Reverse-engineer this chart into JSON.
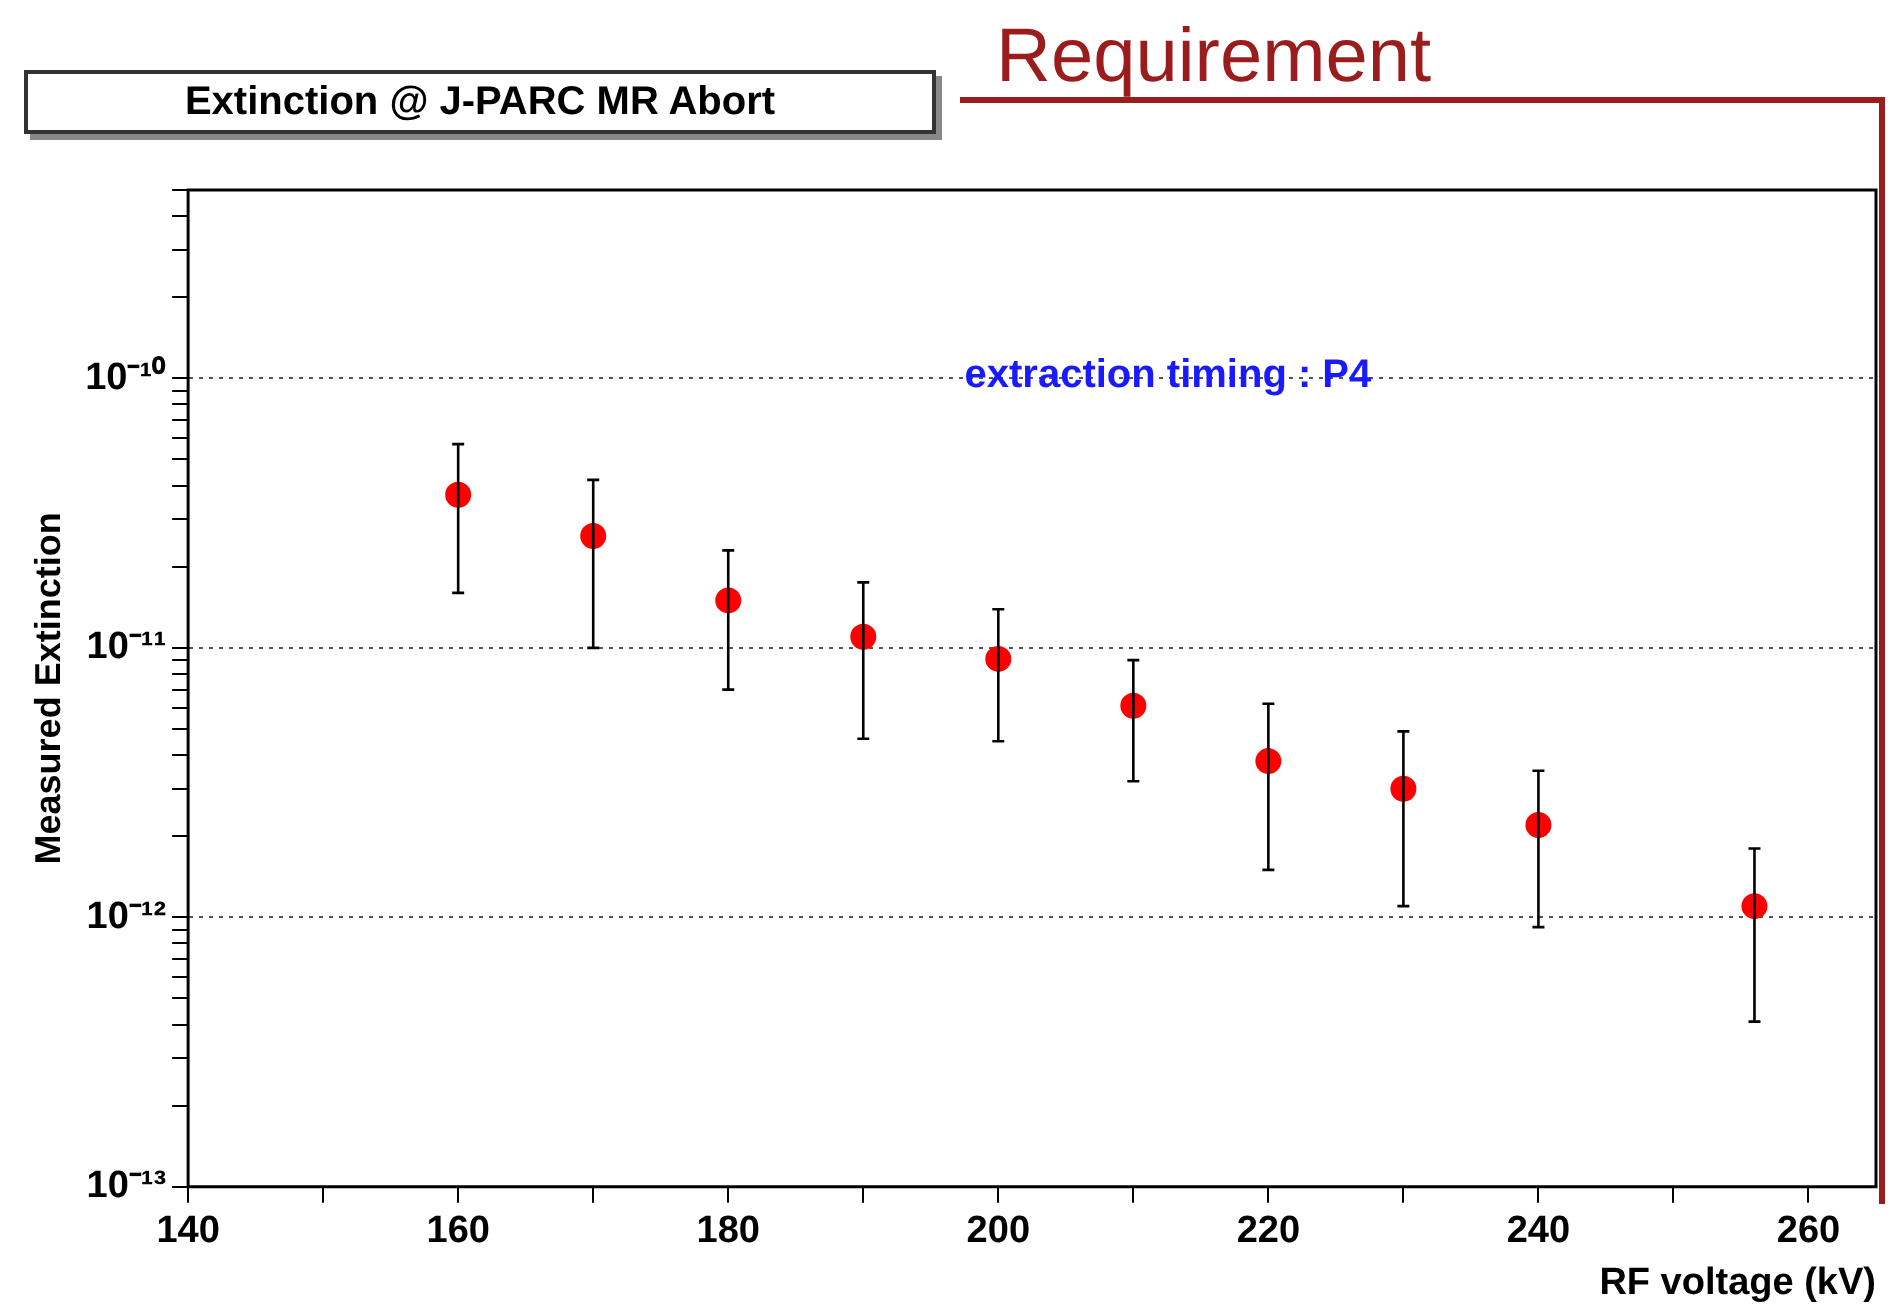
{
  "chart_data": {
    "type": "scatter",
    "title": "Extinction @ J-PARC MR Abort",
    "xlabel": "RF voltage (kV)",
    "ylabel": "Measured Extinction",
    "x": [
      160,
      170,
      180,
      190,
      200,
      210,
      220,
      230,
      240,
      256
    ],
    "series": [
      {
        "color": "#ff0000",
        "values": [
          3.7e-11,
          2.6e-11,
          1.5e-11,
          1.1e-11,
          9.1e-12,
          6.1e-12,
          3.8e-12,
          3e-12,
          2.2e-12,
          1.1e-12
        ],
        "errors": [
          [
            1.6e-11,
            5.7e-11
          ],
          [
            1e-11,
            4.2e-11
          ],
          [
            7e-12,
            2.3e-11
          ],
          [
            4.6e-12,
            1.75e-11
          ],
          [
            4.5e-12,
            1.39e-11
          ],
          [
            3.2e-12,
            9e-12
          ],
          [
            1.5e-12,
            6.2e-12
          ],
          [
            1.1e-12,
            4.9e-12
          ],
          [
            9.2e-13,
            3.5e-12
          ],
          [
            4.1e-13,
            1.8e-12
          ]
        ]
      }
    ],
    "log": "y",
    "marker": "circle",
    "grid": "y",
    "legend": false,
    "xlim": [
      140,
      265
    ],
    "ylim": [
      1e-13,
      5e-10
    ],
    "xticks": [
      140,
      {
        "value": 150,
        "label": null
      },
      160,
      {
        "value": 170,
        "label": null
      },
      180,
      {
        "value": 190,
        "label": null
      },
      200,
      {
        "value": 210,
        "label": null
      },
      220,
      {
        "value": 230,
        "label": null
      },
      240,
      {
        "value": 250,
        "label": null
      },
      260
    ],
    "yticks": [
      {
        "value": 1e-13,
        "label": "10⁻¹³"
      },
      {
        "value": 2e-13,
        "label": null
      },
      {
        "value": 3e-13,
        "label": null
      },
      {
        "value": 4e-13,
        "label": null
      },
      {
        "value": 5e-13,
        "label": null
      },
      {
        "value": 6e-13,
        "label": null
      },
      {
        "value": 7e-13,
        "label": null
      },
      {
        "value": 8e-13,
        "label": null
      },
      {
        "value": 9e-13,
        "label": null
      },
      {
        "value": 1e-12,
        "label": "10⁻¹²"
      },
      {
        "value": 2e-12,
        "label": null
      },
      {
        "value": 3e-12,
        "label": null
      },
      {
        "value": 4e-12,
        "label": null
      },
      {
        "value": 5e-12,
        "label": null
      },
      {
        "value": 6e-12,
        "label": null
      },
      {
        "value": 7e-12,
        "label": null
      },
      {
        "value": 8e-12,
        "label": null
      },
      {
        "value": 9e-12,
        "label": null
      },
      {
        "value": 1e-11,
        "label": "10⁻¹¹"
      },
      {
        "value": 2e-11,
        "label": null
      },
      {
        "value": 3e-11,
        "label": null
      },
      {
        "value": 4e-11,
        "label": null
      },
      {
        "value": 5e-11,
        "label": null
      },
      {
        "value": 6e-11,
        "label": null
      },
      {
        "value": 7e-11,
        "label": null
      },
      {
        "value": 8e-11,
        "label": null
      },
      {
        "value": 9e-11,
        "label": null
      },
      {
        "value": 1e-10,
        "label": "10⁻¹⁰"
      },
      {
        "value": 2e-10,
        "label": null
      },
      {
        "value": 3e-10,
        "label": null
      },
      {
        "value": 4e-10,
        "label": null
      },
      {
        "value": 5e-10,
        "label": null
      }
    ],
    "annotations": [
      "extraction timing : P4",
      "Requirement"
    ]
  }
}
